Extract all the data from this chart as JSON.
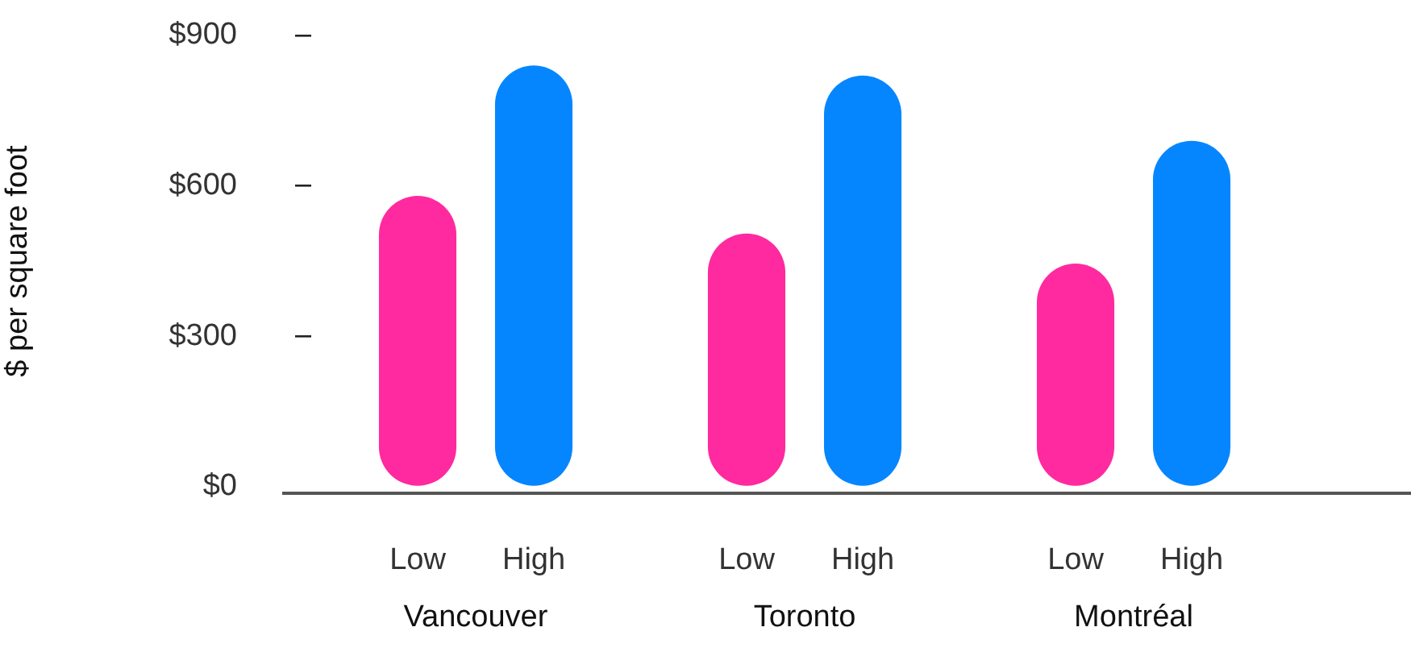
{
  "chart_data": {
    "type": "bar",
    "ylabel": "$ per square foot",
    "categories": [
      "Vancouver",
      "Toronto",
      "Montréal"
    ],
    "series": [
      {
        "name": "Low",
        "color": "#ff2a9f",
        "values": [
          580,
          505,
          445
        ]
      },
      {
        "name": "High",
        "color": "#0586ff",
        "values": [
          840,
          820,
          690
        ]
      }
    ],
    "ylim": [
      0,
      900
    ],
    "yticks": [
      {
        "value": 0,
        "label": "$0"
      },
      {
        "value": 300,
        "label": "$300"
      },
      {
        "value": 600,
        "label": "$600"
      },
      {
        "value": 900,
        "label": "$900"
      }
    ],
    "grid": false,
    "legend": false
  }
}
